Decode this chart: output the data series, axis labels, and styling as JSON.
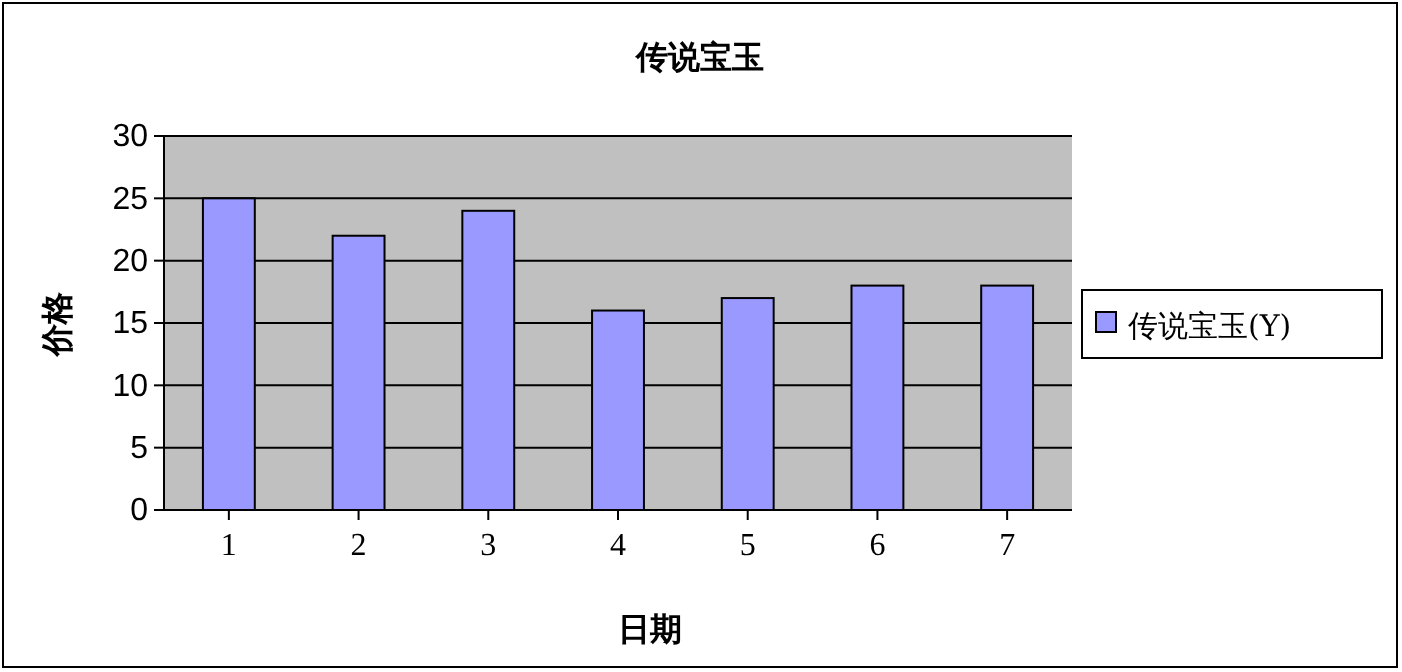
{
  "chart_data": {
    "type": "bar",
    "title": "传说宝玉",
    "xlabel": "日期",
    "ylabel": "价格",
    "categories": [
      "1",
      "2",
      "3",
      "4",
      "5",
      "6",
      "7"
    ],
    "series": [
      {
        "name": "传说宝玉(Y)",
        "color": "#9999ff",
        "values": [
          25,
          22,
          24,
          16,
          17,
          18,
          18
        ]
      }
    ],
    "ylim": [
      0,
      30
    ],
    "yticks": [
      0,
      5,
      10,
      15,
      20,
      25,
      30
    ],
    "grid": "y",
    "legend": "right"
  }
}
